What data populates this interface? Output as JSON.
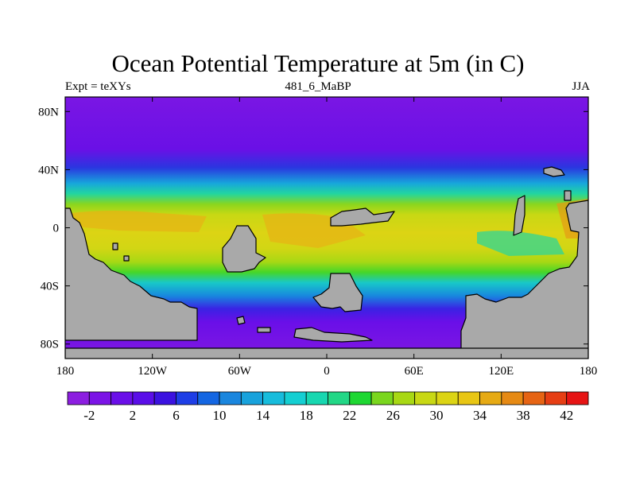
{
  "title": "Ocean Potential Temperature at 5m (in C)",
  "left_string": "Expt = teXYs",
  "center_string": "481_6_MaBP",
  "right_string": "JJA",
  "map": {
    "projection": "cylindrical-equidistant",
    "lon_range": [
      -180,
      180
    ],
    "lat_range": [
      -90,
      90
    ],
    "lon_ticks": [
      {
        "value": -180,
        "label": "180"
      },
      {
        "value": -120,
        "label": "120W"
      },
      {
        "value": -60,
        "label": "60W"
      },
      {
        "value": 0,
        "label": "0"
      },
      {
        "value": 60,
        "label": "60E"
      },
      {
        "value": 120,
        "label": "120E"
      },
      {
        "value": 180,
        "label": "180"
      }
    ],
    "lat_ticks": [
      {
        "value": 80,
        "label": "80N"
      },
      {
        "value": 40,
        "label": "40N"
      },
      {
        "value": 0,
        "label": "0"
      },
      {
        "value": -40,
        "label": "40S"
      },
      {
        "value": -80,
        "label": "80S"
      }
    ],
    "land_color": "#a9a9a9"
  },
  "colorbar": {
    "levels": [
      -4,
      -2,
      0,
      2,
      4,
      6,
      8,
      10,
      12,
      14,
      16,
      18,
      20,
      22,
      24,
      26,
      28,
      30,
      32,
      34,
      36,
      38,
      40,
      42,
      44
    ],
    "labels": [
      {
        "value": -2,
        "label": "-2"
      },
      {
        "value": 2,
        "label": "2"
      },
      {
        "value": 6,
        "label": "6"
      },
      {
        "value": 10,
        "label": "10"
      },
      {
        "value": 14,
        "label": "14"
      },
      {
        "value": 18,
        "label": "18"
      },
      {
        "value": 22,
        "label": "22"
      },
      {
        "value": 26,
        "label": "26"
      },
      {
        "value": 30,
        "label": "30"
      },
      {
        "value": 34,
        "label": "34"
      },
      {
        "value": 38,
        "label": "38"
      },
      {
        "value": 42,
        "label": "42"
      }
    ],
    "colors": [
      "#8c1ee0",
      "#7b14e6",
      "#6a0fe8",
      "#5a0ee8",
      "#3b12e0",
      "#1e3ee6",
      "#1466e2",
      "#1a86de",
      "#18a2dc",
      "#17bcdc",
      "#14cfd2",
      "#17d7b0",
      "#22d786",
      "#1ed732",
      "#7ad61e",
      "#a8d814",
      "#c8d814",
      "#dcd414",
      "#e8c614",
      "#e6aa14",
      "#e68a14",
      "#e66414",
      "#e63e14",
      "#e61414"
    ]
  }
}
